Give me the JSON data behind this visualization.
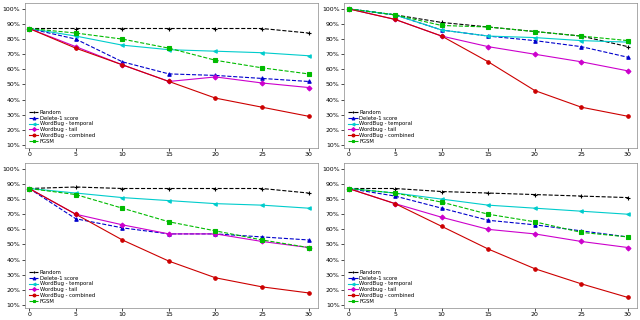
{
  "x": [
    0,
    5,
    10,
    15,
    20,
    25,
    30
  ],
  "subplots": [
    {
      "Random": [
        87,
        87,
        87,
        87,
        87,
        87,
        84
      ],
      "Delete-1 score": [
        87,
        80,
        65,
        57,
        56,
        54,
        52
      ],
      "WordBug - temporal": [
        87,
        82,
        76,
        73,
        72,
        71,
        69
      ],
      "Wordbug - tail": [
        87,
        75,
        63,
        52,
        55,
        51,
        48
      ],
      "WordBug - combined": [
        87,
        74,
        63,
        52,
        41,
        35,
        29
      ],
      "FGSM": [
        87,
        84,
        80,
        74,
        66,
        61,
        57
      ]
    },
    {
      "Random": [
        100,
        96,
        91,
        88,
        85,
        82,
        75
      ],
      "Delete-1 score": [
        100,
        96,
        86,
        82,
        79,
        75,
        68
      ],
      "WordBug - temporal": [
        100,
        96,
        86,
        82,
        81,
        79,
        78
      ],
      "Wordbug - tail": [
        100,
        93,
        82,
        75,
        70,
        65,
        59
      ],
      "WordBug - combined": [
        100,
        93,
        82,
        65,
        46,
        35,
        29
      ],
      "FGSM": [
        100,
        96,
        89,
        88,
        85,
        82,
        79
      ]
    },
    {
      "Random": [
        87,
        88,
        87,
        87,
        87,
        87,
        84
      ],
      "Delete-1 score": [
        87,
        67,
        61,
        57,
        57,
        55,
        53
      ],
      "WordBug - temporal": [
        87,
        84,
        81,
        79,
        77,
        76,
        74
      ],
      "Wordbug - tail": [
        87,
        70,
        63,
        57,
        57,
        52,
        48
      ],
      "WordBug - combined": [
        87,
        70,
        53,
        39,
        28,
        22,
        18
      ],
      "FGSM": [
        87,
        83,
        74,
        65,
        59,
        53,
        48
      ]
    },
    {
      "Random": [
        87,
        87,
        85,
        84,
        83,
        82,
        81
      ],
      "Delete-1 score": [
        87,
        82,
        74,
        66,
        63,
        59,
        55
      ],
      "WordBug - temporal": [
        87,
        84,
        80,
        76,
        74,
        72,
        70
      ],
      "Wordbug - tail": [
        87,
        77,
        68,
        60,
        57,
        52,
        48
      ],
      "WordBug - combined": [
        87,
        77,
        62,
        47,
        34,
        24,
        15
      ],
      "FGSM": [
        87,
        84,
        78,
        70,
        65,
        58,
        55
      ]
    }
  ],
  "colors": {
    "Random": "#000000",
    "Delete-1 score": "#0000cc",
    "WordBug - temporal": "#00cccc",
    "Wordbug - tail": "#cc00cc",
    "WordBug - combined": "#cc0000",
    "FGSM": "#00bb00"
  },
  "markers": {
    "Random": "+",
    "Delete-1 score": "^",
    "WordBug - temporal": "<",
    "Wordbug - tail": "D",
    "WordBug - combined": "o",
    "FGSM": "s"
  },
  "linestyles": {
    "Random": "--",
    "Delete-1 score": "--",
    "WordBug - temporal": "-",
    "Wordbug - tail": "-",
    "WordBug - combined": "-",
    "FGSM": "--"
  },
  "yticks": [
    10,
    20,
    30,
    40,
    50,
    60,
    70,
    80,
    90,
    100
  ],
  "xticks": [
    0,
    5,
    10,
    15,
    20,
    25,
    30
  ],
  "ylim": [
    8,
    104
  ],
  "legend_order": [
    "Random",
    "Delete-1 score",
    "WordBug - temporal",
    "Wordbug - tail",
    "WordBug - combined",
    "FGSM"
  ]
}
